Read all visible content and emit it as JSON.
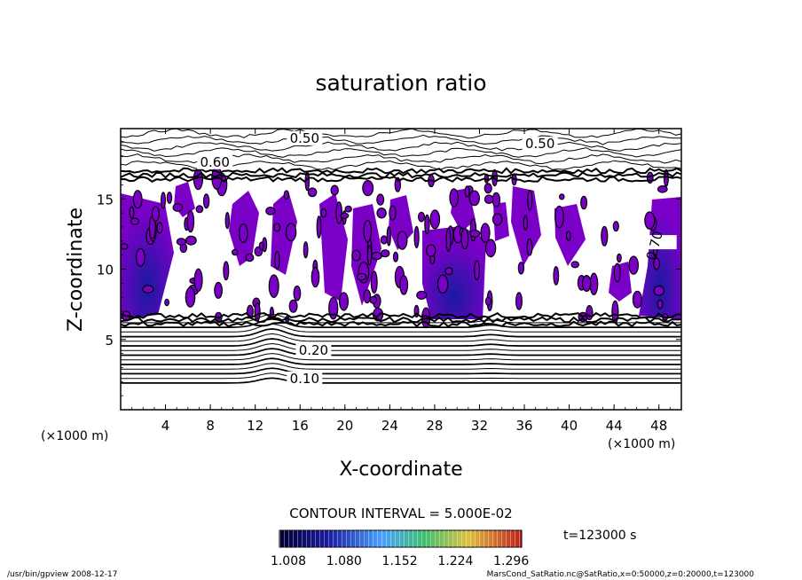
{
  "chart_data": {
    "type": "heatmap",
    "title": "saturation ratio",
    "xlabel": "X-coordinate",
    "ylabel": "Z-coordinate",
    "x_unit": "(×1000 m)",
    "y_unit": "(×1000 m)",
    "xlim": [
      0,
      50
    ],
    "ylim": [
      0,
      20
    ],
    "x_ticks": [
      "4",
      "8",
      "12",
      "16",
      "20",
      "24",
      "28",
      "32",
      "36",
      "40",
      "44",
      "48"
    ],
    "y_ticks": [
      "5",
      "10",
      "15"
    ],
    "contour_labels": [
      "0.50",
      "0.50",
      "0.60",
      "0.20",
      "0.10",
      "0.70"
    ],
    "contour_interval_label": "CONTOUR INTERVAL = 5.000E-02",
    "colorbar_ticks": [
      "1.008",
      "1.080",
      "1.152",
      "1.224",
      "1.296"
    ],
    "colorbar_range": [
      1.008,
      1.296
    ],
    "time_label": "t=123000 s",
    "colors": {
      "supersaturated_fill": "#7a00c8",
      "core_fill": "#1a1aa0",
      "colorbar_stops": [
        "#000033",
        "#1a1aa0",
        "#4aa0ff",
        "#40c070",
        "#e0c040",
        "#c02020"
      ]
    },
    "footer": {
      "left": "/usr/bin/gpview   2008-12-17",
      "right": "MarsCond_SatRatio.nc@SatRatio,x=0:50000,z=0:20000,t=123000"
    }
  }
}
